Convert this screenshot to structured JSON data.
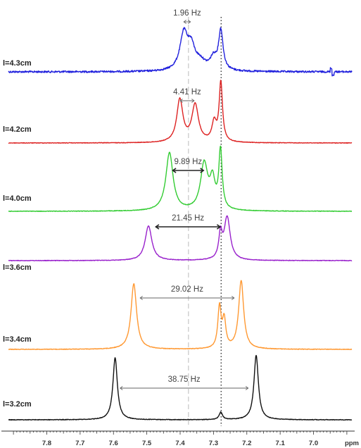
{
  "chart_data": {
    "type": "line",
    "title": "",
    "xlabel": "ppm",
    "ylabel": "",
    "xlim": [
      7.915,
      6.885
    ],
    "x_reversed": true,
    "grid": false,
    "x_ticks": [
      7.8,
      7.7,
      7.6,
      7.5,
      7.4,
      7.3,
      7.2,
      7.1,
      7.0
    ],
    "x_tick_labels": [
      "7.8",
      "7.7",
      "7.6",
      "7.5",
      "7.4",
      "7.3",
      "7.2",
      "7.1",
      "7.0"
    ],
    "reference_lines": [
      {
        "x": 7.375,
        "style": "dashed",
        "color": "#bbbbbb"
      },
      {
        "x": 7.277,
        "style": "dotted",
        "color": "#333333"
      }
    ],
    "series": [
      {
        "name": "l=4.3cm",
        "color": "#2222dd",
        "annotation": {
          "text": "1.96 Hz",
          "x1": 7.389,
          "x2": 7.369
        },
        "peaks": [
          {
            "x": 7.389,
            "height": 0.78,
            "width": 0.014
          },
          {
            "x": 7.367,
            "height": 0.45,
            "width": 0.013
          },
          {
            "x": 7.34,
            "height": 0.18,
            "width": 0.02
          },
          {
            "x": 7.278,
            "height": 0.85,
            "width": 0.008
          },
          {
            "x": 7.3,
            "height": 0.25,
            "width": 0.012
          }
        ]
      },
      {
        "name": "l=4.2cm",
        "color": "#dd2222",
        "annotation": {
          "text": "4.41 Hz",
          "x1": 7.4,
          "x2": 7.358
        },
        "peaks": [
          {
            "x": 7.401,
            "height": 0.72,
            "width": 0.011
          },
          {
            "x": 7.355,
            "height": 0.63,
            "width": 0.012
          },
          {
            "x": 7.298,
            "height": 0.32,
            "width": 0.008
          },
          {
            "x": 7.278,
            "height": 1.0,
            "width": 0.006
          }
        ]
      },
      {
        "name": "l=4.0cm",
        "color": "#33cc33",
        "annotation": {
          "text": "9.89 Hz",
          "x1": 7.422,
          "x2": 7.33
        },
        "peaks": [
          {
            "x": 7.432,
            "height": 0.8,
            "width": 0.013
          },
          {
            "x": 7.328,
            "height": 0.64,
            "width": 0.013
          },
          {
            "x": 7.303,
            "height": 0.38,
            "width": 0.009
          },
          {
            "x": 7.279,
            "height": 0.81,
            "width": 0.006
          }
        ]
      },
      {
        "name": "l=3.6cm",
        "color": "#9922cc",
        "annotation": {
          "text": "21.45 Hz",
          "x1": 7.473,
          "x2": 7.28
        },
        "peaks": [
          {
            "x": 7.495,
            "height": 0.77,
            "width": 0.012
          },
          {
            "x": 7.279,
            "height": 0.54,
            "width": 0.006
          },
          {
            "x": 7.259,
            "height": 0.95,
            "width": 0.011
          }
        ]
      },
      {
        "name": "l=3.4cm",
        "color": "#ff9933",
        "annotation": {
          "text": "29.02 Hz",
          "x1": 7.52,
          "x2": 7.238
        },
        "peaks": [
          {
            "x": 7.539,
            "height": 0.96,
            "width": 0.01
          },
          {
            "x": 7.282,
            "height": 0.6,
            "width": 0.006
          },
          {
            "x": 7.268,
            "height": 0.4,
            "width": 0.006
          },
          {
            "x": 7.217,
            "height": 1.0,
            "width": 0.009
          }
        ]
      },
      {
        "name": "l=3.2cm",
        "color": "#111111",
        "annotation": {
          "text": "38.75 Hz",
          "x1": 7.58,
          "x2": 7.196
        },
        "peaks": [
          {
            "x": 7.595,
            "height": 1.0,
            "width": 0.008
          },
          {
            "x": 7.278,
            "height": 0.12,
            "width": 0.006
          },
          {
            "x": 7.172,
            "height": 1.04,
            "width": 0.008
          }
        ]
      }
    ]
  }
}
